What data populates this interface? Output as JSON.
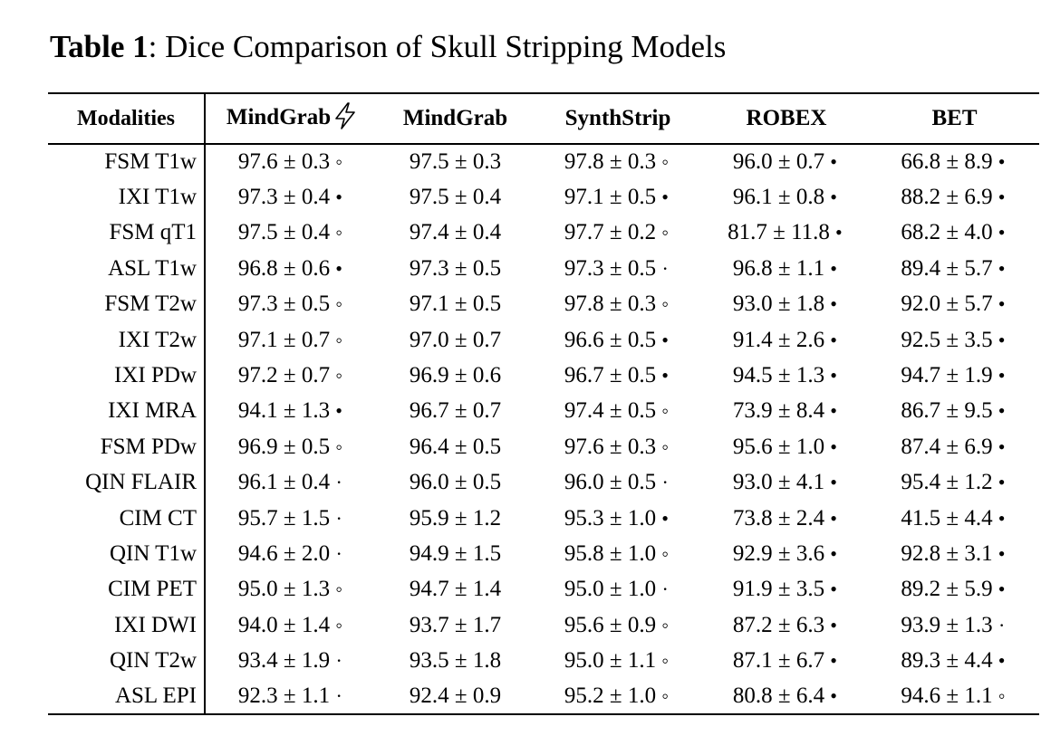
{
  "caption": {
    "label": "Table 1",
    "text": ": Dice Comparison of Skull Stripping Models"
  },
  "columns": [
    "Modalities",
    "MindGrab",
    "MindGrab",
    "SynthStrip",
    "ROBEX",
    "BET"
  ],
  "icons": {
    "header_col1": "lightning-bolt-icon"
  },
  "rows": [
    {
      "modality": "FSM T1w",
      "cells": [
        {
          "v": "97.6 ± 0.3",
          "m": "◦"
        },
        {
          "v": "97.5 ± 0.3",
          "m": ""
        },
        {
          "v": "97.8 ± 0.3",
          "m": "◦"
        },
        {
          "v": "96.0 ± 0.7",
          "m": "•"
        },
        {
          "v": "66.8 ± 8.9",
          "m": "•"
        }
      ]
    },
    {
      "modality": "IXI T1w",
      "cells": [
        {
          "v": "97.3 ± 0.4",
          "m": "•"
        },
        {
          "v": "97.5 ± 0.4",
          "m": ""
        },
        {
          "v": "97.1 ± 0.5",
          "m": "•"
        },
        {
          "v": "96.1 ± 0.8",
          "m": "•"
        },
        {
          "v": "88.2 ± 6.9",
          "m": "•"
        }
      ]
    },
    {
      "modality": "FSM qT1",
      "cells": [
        {
          "v": "97.5 ± 0.4",
          "m": "◦"
        },
        {
          "v": "97.4 ± 0.4",
          "m": ""
        },
        {
          "v": "97.7 ± 0.2",
          "m": "◦"
        },
        {
          "v": "81.7 ± 11.8",
          "m": "•"
        },
        {
          "v": "68.2 ± 4.0",
          "m": "•"
        }
      ]
    },
    {
      "modality": "ASL T1w",
      "cells": [
        {
          "v": "96.8 ± 0.6",
          "m": "•"
        },
        {
          "v": "97.3 ± 0.5",
          "m": ""
        },
        {
          "v": "97.3 ± 0.5",
          "m": "·"
        },
        {
          "v": "96.8 ± 1.1",
          "m": "•"
        },
        {
          "v": "89.4 ± 5.7",
          "m": "•"
        }
      ]
    },
    {
      "modality": "FSM T2w",
      "cells": [
        {
          "v": "97.3 ± 0.5",
          "m": "◦"
        },
        {
          "v": "97.1 ± 0.5",
          "m": ""
        },
        {
          "v": "97.8 ± 0.3",
          "m": "◦"
        },
        {
          "v": "93.0 ± 1.8",
          "m": "•"
        },
        {
          "v": "92.0 ± 5.7",
          "m": "•"
        }
      ]
    },
    {
      "modality": "IXI T2w",
      "cells": [
        {
          "v": "97.1 ± 0.7",
          "m": "◦"
        },
        {
          "v": "97.0 ± 0.7",
          "m": ""
        },
        {
          "v": "96.6 ± 0.5",
          "m": "•"
        },
        {
          "v": "91.4 ± 2.6",
          "m": "•"
        },
        {
          "v": "92.5 ± 3.5",
          "m": "•"
        }
      ]
    },
    {
      "modality": "IXI PDw",
      "cells": [
        {
          "v": "97.2 ± 0.7",
          "m": "◦"
        },
        {
          "v": "96.9 ± 0.6",
          "m": ""
        },
        {
          "v": "96.7 ± 0.5",
          "m": "•"
        },
        {
          "v": "94.5 ± 1.3",
          "m": "•"
        },
        {
          "v": "94.7 ± 1.9",
          "m": "•"
        }
      ]
    },
    {
      "modality": "IXI MRA",
      "cells": [
        {
          "v": "94.1 ± 1.3",
          "m": "•"
        },
        {
          "v": "96.7 ± 0.7",
          "m": ""
        },
        {
          "v": "97.4 ± 0.5",
          "m": "◦"
        },
        {
          "v": "73.9 ± 8.4",
          "m": "•"
        },
        {
          "v": "86.7 ± 9.5",
          "m": "•"
        }
      ]
    },
    {
      "modality": "FSM PDw",
      "cells": [
        {
          "v": "96.9 ± 0.5",
          "m": "◦"
        },
        {
          "v": "96.4 ± 0.5",
          "m": ""
        },
        {
          "v": "97.6 ± 0.3",
          "m": "◦"
        },
        {
          "v": "95.6 ± 1.0",
          "m": "•"
        },
        {
          "v": "87.4 ± 6.9",
          "m": "•"
        }
      ]
    },
    {
      "modality": "QIN FLAIR",
      "cells": [
        {
          "v": "96.1 ± 0.4",
          "m": "·"
        },
        {
          "v": "96.0 ± 0.5",
          "m": ""
        },
        {
          "v": "96.0 ± 0.5",
          "m": "·"
        },
        {
          "v": "93.0 ± 4.1",
          "m": "•"
        },
        {
          "v": "95.4 ± 1.2",
          "m": "•"
        }
      ]
    },
    {
      "modality": "CIM CT",
      "cells": [
        {
          "v": "95.7 ± 1.5",
          "m": "·"
        },
        {
          "v": "95.9 ± 1.2",
          "m": ""
        },
        {
          "v": "95.3 ± 1.0",
          "m": "•"
        },
        {
          "v": "73.8 ± 2.4",
          "m": "•"
        },
        {
          "v": "41.5 ± 4.4",
          "m": "•"
        }
      ]
    },
    {
      "modality": "QIN T1w",
      "cells": [
        {
          "v": "94.6 ± 2.0",
          "m": "·"
        },
        {
          "v": "94.9 ± 1.5",
          "m": ""
        },
        {
          "v": "95.8 ± 1.0",
          "m": "◦"
        },
        {
          "v": "92.9 ± 3.6",
          "m": "•"
        },
        {
          "v": "92.8 ± 3.1",
          "m": "•"
        }
      ]
    },
    {
      "modality": "CIM PET",
      "cells": [
        {
          "v": "95.0 ± 1.3",
          "m": "◦"
        },
        {
          "v": "94.7 ± 1.4",
          "m": ""
        },
        {
          "v": "95.0 ± 1.0",
          "m": "·"
        },
        {
          "v": "91.9 ± 3.5",
          "m": "•"
        },
        {
          "v": "89.2 ± 5.9",
          "m": "•"
        }
      ]
    },
    {
      "modality": "IXI DWI",
      "cells": [
        {
          "v": "94.0 ± 1.4",
          "m": "◦"
        },
        {
          "v": "93.7 ± 1.7",
          "m": ""
        },
        {
          "v": "95.6 ± 0.9",
          "m": "◦"
        },
        {
          "v": "87.2 ± 6.3",
          "m": "•"
        },
        {
          "v": "93.9 ± 1.3",
          "m": "·"
        }
      ]
    },
    {
      "modality": "QIN T2w",
      "cells": [
        {
          "v": "93.4 ± 1.9",
          "m": "·"
        },
        {
          "v": "93.5 ± 1.8",
          "m": ""
        },
        {
          "v": "95.0 ± 1.1",
          "m": "◦"
        },
        {
          "v": "87.1 ± 6.7",
          "m": "•"
        },
        {
          "v": "89.3 ± 4.4",
          "m": "•"
        }
      ]
    },
    {
      "modality": "ASL EPI",
      "cells": [
        {
          "v": "92.3 ± 1.1",
          "m": "·"
        },
        {
          "v": "92.4 ± 0.9",
          "m": ""
        },
        {
          "v": "95.2 ± 1.0",
          "m": "◦"
        },
        {
          "v": "80.8 ± 6.4",
          "m": "•"
        },
        {
          "v": "94.6 ± 1.1",
          "m": "◦"
        }
      ]
    }
  ]
}
